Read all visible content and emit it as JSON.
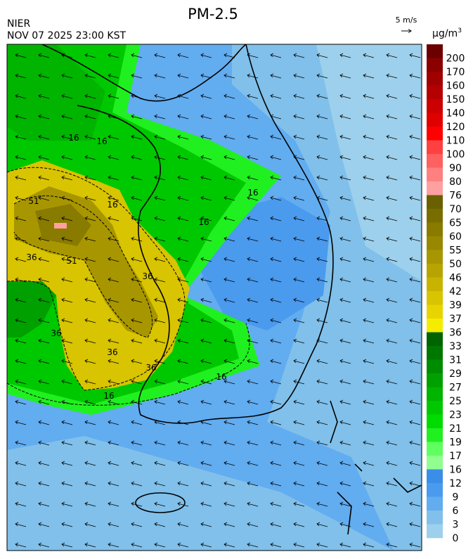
{
  "header": {
    "title": "PM-2.5",
    "agency": "NIER",
    "timestamp": "NOV 07 2025 23:00 KST",
    "wind_scale": "5 m/s",
    "unit_base": "μg/m",
    "unit_exp": "3"
  },
  "map": {
    "contour_labels": [
      "51",
      "36",
      "51",
      "36",
      "36",
      "36",
      "36",
      "16",
      "16",
      "16",
      "16",
      "16",
      "16",
      "16"
    ]
  },
  "colorbar": {
    "labels": [
      200,
      170,
      160,
      150,
      140,
      120,
      110,
      100,
      90,
      80,
      76,
      70,
      65,
      60,
      55,
      50,
      46,
      42,
      39,
      37,
      36,
      33,
      31,
      29,
      27,
      25,
      23,
      21,
      19,
      17,
      16,
      12,
      9,
      6,
      3,
      0
    ],
    "colors": [
      "#6b0000",
      "#8b0000",
      "#a00000",
      "#b40000",
      "#cc0000",
      "#e00000",
      "#ff0000",
      "#ff4040",
      "#ff6060",
      "#ff8080",
      "#ffa0a0",
      "#6b6000",
      "#7a6d00",
      "#897a00",
      "#988800",
      "#a89600",
      "#b8a400",
      "#c8b400",
      "#d8c400",
      "#e8d400",
      "#f5ec00",
      "#006400",
      "#007800",
      "#008c00",
      "#00a000",
      "#00b400",
      "#00c800",
      "#00dc00",
      "#20f020",
      "#60ff60",
      "#90ff90",
      "#3a8ee8",
      "#4a9aee",
      "#62acf0",
      "#80c0ea",
      "#9dd0ec"
    ]
  }
}
